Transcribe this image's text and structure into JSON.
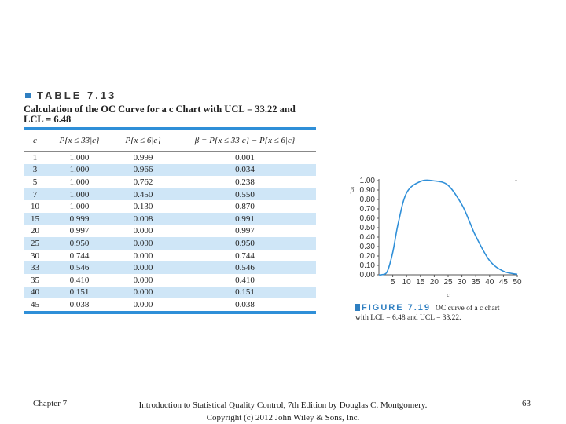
{
  "table": {
    "number": "TABLE 7.13",
    "caption": "Calculation of the OC Curve for a c Chart with UCL = 33.22 and LCL = 6.48",
    "headers": [
      "c",
      "P{x ≤ 33|c}",
      "P{x ≤ 6|c}",
      "β = P{x ≤ 33|c} − P{x ≤ 6|c}"
    ],
    "rows": [
      [
        "1",
        "1.000",
        "0.999",
        "0.001"
      ],
      [
        "3",
        "1.000",
        "0.966",
        "0.034"
      ],
      [
        "5",
        "1.000",
        "0.762",
        "0.238"
      ],
      [
        "7",
        "1.000",
        "0.450",
        "0.550"
      ],
      [
        "10",
        "1.000",
        "0.130",
        "0.870"
      ],
      [
        "15",
        "0.999",
        "0.008",
        "0.991"
      ],
      [
        "20",
        "0.997",
        "0.000",
        "0.997"
      ],
      [
        "25",
        "0.950",
        "0.000",
        "0.950"
      ],
      [
        "30",
        "0.744",
        "0.000",
        "0.744"
      ],
      [
        "33",
        "0.546",
        "0.000",
        "0.546"
      ],
      [
        "35",
        "0.410",
        "0.000",
        "0.410"
      ],
      [
        "40",
        "0.151",
        "0.000",
        "0.151"
      ],
      [
        "45",
        "0.038",
        "0.000",
        "0.038"
      ]
    ]
  },
  "chart_data": {
    "type": "line",
    "xlabel": "c",
    "ylabel": "β",
    "xlim": [
      0,
      50
    ],
    "ylim": [
      0,
      1
    ],
    "xticks": [
      5,
      10,
      15,
      20,
      25,
      30,
      35,
      40,
      45,
      50
    ],
    "yticks": [
      "0.00",
      "0.10",
      "0.20",
      "0.30",
      "0.40",
      "0.50",
      "0.60",
      "0.70",
      "0.80",
      "0.90",
      "1.00"
    ],
    "series": [
      {
        "x": [
          1,
          3,
          5,
          7,
          10,
          15,
          20,
          25,
          30,
          33,
          35,
          40,
          45
        ],
        "y": [
          0.001,
          0.034,
          0.238,
          0.55,
          0.87,
          0.991,
          0.997,
          0.95,
          0.744,
          0.546,
          0.41,
          0.151,
          0.038
        ]
      }
    ],
    "color": "#2f8fd8"
  },
  "figure": {
    "number": "FIGURE 7.19",
    "caption_line1": "OC curve of a c chart",
    "caption_line2": "with LCL = 6.48 and UCL = 33.22."
  },
  "footer": {
    "left": "Chapter 7",
    "center_line1": "Introduction to Statistical Quality Control, 7th Edition by Douglas C. Montgomery.",
    "center_line2": "Copyright (c) 2012 John Wiley & Sons, Inc.",
    "right": "63"
  }
}
